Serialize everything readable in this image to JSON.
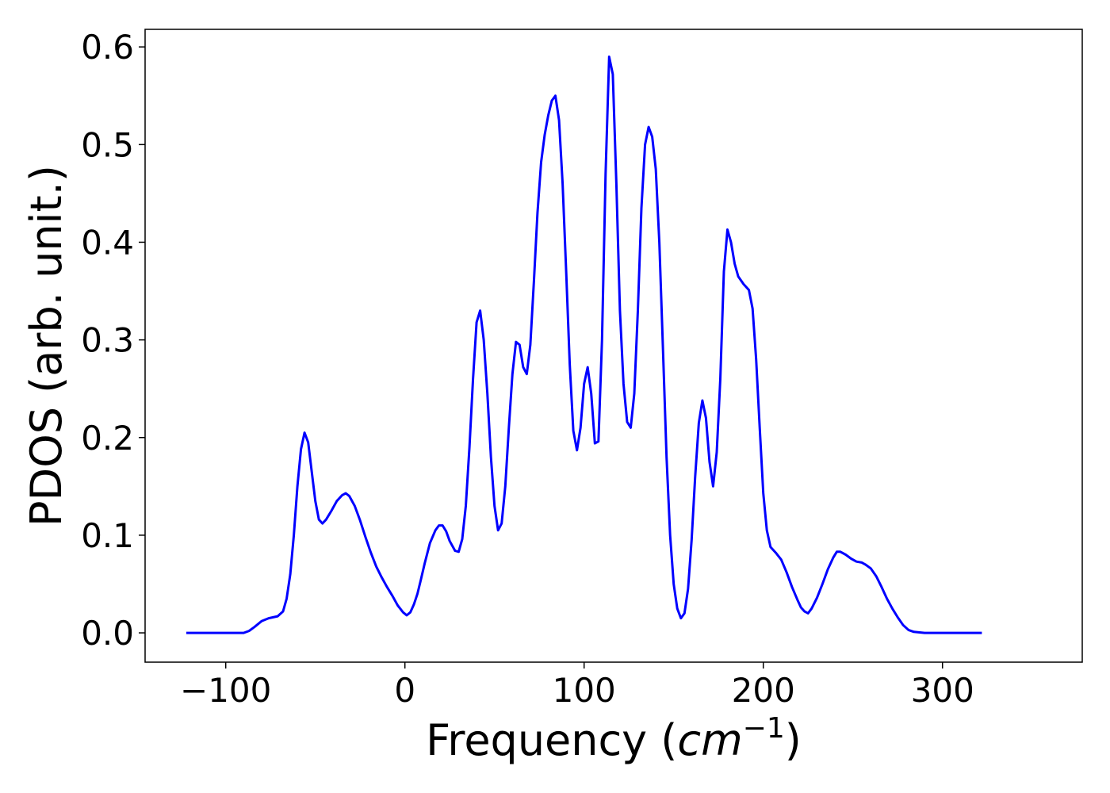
{
  "chart_data": {
    "type": "line",
    "title": "",
    "xlabel_prefix": "Frequency (",
    "xlabel_unit": "cm",
    "xlabel_exp": "−1",
    "xlabel_suffix": ")",
    "ylabel": "PDOS (arb. unit.)",
    "xlim": [
      -145,
      378
    ],
    "ylim": [
      -0.03,
      0.618
    ],
    "xticks": [
      -100,
      0,
      100,
      200,
      300
    ],
    "xtick_labels": [
      "−100",
      "0",
      "100",
      "200",
      "300"
    ],
    "yticks": [
      0.0,
      0.1,
      0.2,
      0.3,
      0.4,
      0.5,
      0.6
    ],
    "ytick_labels": [
      "0.0",
      "0.1",
      "0.2",
      "0.3",
      "0.4",
      "0.5",
      "0.6"
    ],
    "grid": false,
    "legend": "none",
    "series": [
      {
        "color": "#0000ff",
        "points": [
          [
            -122,
            0.0
          ],
          [
            -110,
            0.0
          ],
          [
            -100,
            0.0
          ],
          [
            -90,
            0.0
          ],
          [
            -87,
            0.002
          ],
          [
            -84,
            0.006
          ],
          [
            -80,
            0.012
          ],
          [
            -76,
            0.015
          ],
          [
            -71,
            0.017
          ],
          [
            -68,
            0.022
          ],
          [
            -66,
            0.035
          ],
          [
            -64,
            0.06
          ],
          [
            -62,
            0.1
          ],
          [
            -60,
            0.15
          ],
          [
            -58,
            0.188
          ],
          [
            -56,
            0.205
          ],
          [
            -54,
            0.195
          ],
          [
            -52,
            0.165
          ],
          [
            -50,
            0.135
          ],
          [
            -48,
            0.116
          ],
          [
            -46,
            0.112
          ],
          [
            -44,
            0.116
          ],
          [
            -41,
            0.125
          ],
          [
            -38,
            0.135
          ],
          [
            -35,
            0.141
          ],
          [
            -33,
            0.143
          ],
          [
            -31,
            0.14
          ],
          [
            -28,
            0.13
          ],
          [
            -25,
            0.115
          ],
          [
            -22,
            0.098
          ],
          [
            -19,
            0.082
          ],
          [
            -16,
            0.068
          ],
          [
            -13,
            0.057
          ],
          [
            -10,
            0.047
          ],
          [
            -7,
            0.038
          ],
          [
            -4,
            0.028
          ],
          [
            -1,
            0.021
          ],
          [
            1,
            0.018
          ],
          [
            3,
            0.021
          ],
          [
            5,
            0.029
          ],
          [
            7,
            0.04
          ],
          [
            9,
            0.055
          ],
          [
            11,
            0.071
          ],
          [
            14,
            0.092
          ],
          [
            17,
            0.105
          ],
          [
            19,
            0.11
          ],
          [
            21,
            0.11
          ],
          [
            23,
            0.104
          ],
          [
            25,
            0.094
          ],
          [
            28,
            0.084
          ],
          [
            30,
            0.083
          ],
          [
            32,
            0.096
          ],
          [
            34,
            0.13
          ],
          [
            36,
            0.19
          ],
          [
            38,
            0.26
          ],
          [
            40,
            0.318
          ],
          [
            42,
            0.33
          ],
          [
            44,
            0.3
          ],
          [
            46,
            0.245
          ],
          [
            48,
            0.18
          ],
          [
            50,
            0.13
          ],
          [
            52,
            0.105
          ],
          [
            54,
            0.112
          ],
          [
            56,
            0.15
          ],
          [
            58,
            0.21
          ],
          [
            60,
            0.265
          ],
          [
            62,
            0.298
          ],
          [
            64,
            0.295
          ],
          [
            66,
            0.272
          ],
          [
            68,
            0.265
          ],
          [
            70,
            0.295
          ],
          [
            72,
            0.36
          ],
          [
            74,
            0.43
          ],
          [
            76,
            0.482
          ],
          [
            78,
            0.51
          ],
          [
            80,
            0.53
          ],
          [
            82,
            0.545
          ],
          [
            84,
            0.55
          ],
          [
            86,
            0.525
          ],
          [
            88,
            0.46
          ],
          [
            90,
            0.37
          ],
          [
            92,
            0.275
          ],
          [
            94,
            0.207
          ],
          [
            96,
            0.187
          ],
          [
            98,
            0.21
          ],
          [
            100,
            0.255
          ],
          [
            102,
            0.272
          ],
          [
            104,
            0.245
          ],
          [
            106,
            0.194
          ],
          [
            108,
            0.196
          ],
          [
            110,
            0.3
          ],
          [
            112,
            0.47
          ],
          [
            114,
            0.59
          ],
          [
            116,
            0.572
          ],
          [
            118,
            0.46
          ],
          [
            120,
            0.33
          ],
          [
            122,
            0.255
          ],
          [
            124,
            0.216
          ],
          [
            126,
            0.21
          ],
          [
            128,
            0.245
          ],
          [
            130,
            0.33
          ],
          [
            132,
            0.435
          ],
          [
            134,
            0.5
          ],
          [
            136,
            0.518
          ],
          [
            138,
            0.508
          ],
          [
            140,
            0.475
          ],
          [
            142,
            0.4
          ],
          [
            144,
            0.29
          ],
          [
            146,
            0.18
          ],
          [
            148,
            0.1
          ],
          [
            150,
            0.05
          ],
          [
            152,
            0.025
          ],
          [
            154,
            0.015
          ],
          [
            156,
            0.02
          ],
          [
            158,
            0.045
          ],
          [
            160,
            0.095
          ],
          [
            162,
            0.16
          ],
          [
            164,
            0.215
          ],
          [
            166,
            0.238
          ],
          [
            168,
            0.22
          ],
          [
            170,
            0.175
          ],
          [
            172,
            0.15
          ],
          [
            174,
            0.185
          ],
          [
            176,
            0.26
          ],
          [
            178,
            0.37
          ],
          [
            180,
            0.413
          ],
          [
            182,
            0.4
          ],
          [
            184,
            0.378
          ],
          [
            186,
            0.365
          ],
          [
            189,
            0.357
          ],
          [
            192,
            0.351
          ],
          [
            194,
            0.332
          ],
          [
            196,
            0.28
          ],
          [
            198,
            0.21
          ],
          [
            200,
            0.143
          ],
          [
            202,
            0.105
          ],
          [
            204,
            0.088
          ],
          [
            207,
            0.082
          ],
          [
            210,
            0.075
          ],
          [
            213,
            0.062
          ],
          [
            216,
            0.047
          ],
          [
            219,
            0.034
          ],
          [
            221,
            0.026
          ],
          [
            223,
            0.022
          ],
          [
            225,
            0.02
          ],
          [
            227,
            0.025
          ],
          [
            230,
            0.036
          ],
          [
            233,
            0.05
          ],
          [
            236,
            0.065
          ],
          [
            239,
            0.077
          ],
          [
            241,
            0.083
          ],
          [
            243,
            0.083
          ],
          [
            246,
            0.08
          ],
          [
            249,
            0.076
          ],
          [
            252,
            0.073
          ],
          [
            255,
            0.072
          ],
          [
            257,
            0.07
          ],
          [
            260,
            0.066
          ],
          [
            263,
            0.058
          ],
          [
            266,
            0.047
          ],
          [
            269,
            0.035
          ],
          [
            272,
            0.025
          ],
          [
            275,
            0.016
          ],
          [
            278,
            0.008
          ],
          [
            281,
            0.003
          ],
          [
            284,
            0.001
          ],
          [
            290,
            0.0
          ],
          [
            300,
            0.0
          ],
          [
            310,
            0.0
          ],
          [
            322,
            0.0
          ]
        ]
      }
    ]
  }
}
